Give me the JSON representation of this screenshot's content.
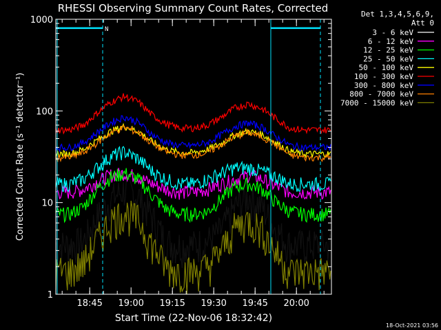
{
  "chart_data": {
    "type": "line",
    "title": "RHESSI Observing Summary Count Rates, Corrected",
    "xlabel": "Start Time (22-Nov-06 18:32:42)",
    "ylabel": "Corrected Count Rate (s⁻¹ detector⁻¹)",
    "y_scale": "log",
    "ylim": [
      1,
      1000
    ],
    "xlim_minutes_after_start": [
      0,
      100
    ],
    "x_tick_labels": [
      "18:45",
      "19:00",
      "19:15",
      "19:30",
      "19:45",
      "20:00"
    ],
    "x_tick_minutes_after_start": [
      12.3,
      27.3,
      42.3,
      57.3,
      72.3,
      87.3
    ],
    "y_tick_labels": [
      "1",
      "10",
      "100",
      "1000"
    ],
    "y_tick_values": [
      1,
      10,
      100,
      1000
    ],
    "legend_header": [
      "Det 1,3,4,5,6,9,",
      "Att 0"
    ],
    "legend_position": "right",
    "footer_date": "18-Oct-2021 03:56",
    "night_markers": [
      {
        "type": "line",
        "x_start": 0,
        "x_end": 17,
        "y": 800,
        "label": "N"
      },
      {
        "type": "line",
        "x_start": 78,
        "x_end": 96,
        "y": 800,
        "label": ""
      }
    ],
    "vertical_markers": [
      {
        "x": 0.5,
        "style": "solid"
      },
      {
        "x": 17,
        "style": "dashed"
      },
      {
        "x": 78,
        "style": "solid"
      },
      {
        "x": 96,
        "style": "dashed"
      }
    ],
    "x": [
      0,
      5,
      10,
      15,
      20,
      25,
      30,
      35,
      40,
      45,
      50,
      55,
      60,
      65,
      70,
      75,
      80,
      85,
      90,
      95,
      100
    ],
    "series": [
      {
        "name": "3 - 6 keV",
        "color": "#000000",
        "values": [
          3.5,
          3.5,
          3.8,
          7,
          11,
          14,
          12,
          7,
          3.8,
          3.5,
          3.5,
          3.8,
          5,
          9,
          12,
          9,
          5,
          3.5,
          3.5,
          3.5,
          3.5
        ]
      },
      {
        "name": "6 - 12 keV",
        "color": "#ff00ff",
        "values": [
          13,
          13,
          14,
          17,
          20,
          21,
          19,
          16,
          14,
          13,
          13,
          14,
          16,
          18,
          20,
          18,
          15,
          13,
          13,
          13,
          13
        ]
      },
      {
        "name": "12 - 25 keV",
        "color": "#00ff00",
        "values": [
          7.5,
          7.5,
          9,
          14,
          19,
          21,
          18,
          12,
          8.5,
          7.5,
          7.5,
          8,
          11,
          15,
          16,
          14,
          10,
          8,
          7.5,
          7.5,
          7.5
        ]
      },
      {
        "name": "25 - 50 keV",
        "color": "#00ffff",
        "values": [
          16,
          16,
          18,
          24,
          32,
          36,
          30,
          22,
          18,
          16,
          16,
          18,
          21,
          24,
          24,
          22,
          19,
          16,
          16,
          16,
          16
        ]
      },
      {
        "name": "50 - 100 keV",
        "color": "#ffff00",
        "values": [
          34,
          34,
          38,
          48,
          60,
          68,
          60,
          46,
          38,
          35,
          35,
          38,
          44,
          55,
          60,
          55,
          45,
          36,
          34,
          34,
          34
        ]
      },
      {
        "name": "100 - 300 keV",
        "color": "#ff0000",
        "values": [
          62,
          62,
          70,
          95,
          125,
          145,
          125,
          90,
          72,
          65,
          65,
          70,
          85,
          108,
          120,
          105,
          82,
          65,
          62,
          62,
          62
        ]
      },
      {
        "name": "300 - 800 keV",
        "color": "#0000ff",
        "values": [
          40,
          40,
          45,
          58,
          75,
          86,
          75,
          55,
          45,
          42,
          42,
          45,
          55,
          68,
          74,
          66,
          52,
          42,
          40,
          40,
          40
        ]
      },
      {
        "name": "800 - 7000 keV",
        "color": "#ff8000",
        "values": [
          31,
          31,
          35,
          45,
          58,
          66,
          58,
          44,
          36,
          33,
          33,
          35,
          43,
          53,
          58,
          52,
          42,
          33,
          31,
          31,
          31
        ]
      },
      {
        "name": "7000 - 15000 keV",
        "color": "#808000",
        "values": [
          1.8,
          1.8,
          2.2,
          4,
          6.5,
          8,
          6.5,
          3.5,
          2,
          1.8,
          1.8,
          2,
          3,
          5.5,
          6.5,
          5,
          2.8,
          1.8,
          1.8,
          1.8,
          1.8
        ]
      }
    ]
  }
}
